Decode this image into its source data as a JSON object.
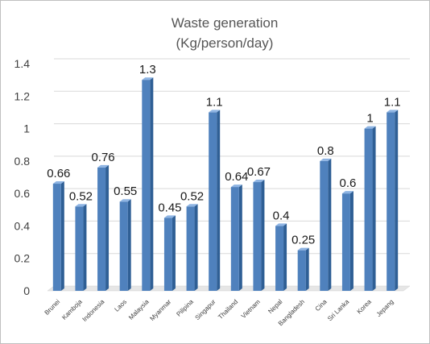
{
  "chart_data": {
    "type": "bar",
    "title_line1": "Waste generation",
    "title_line2": "(Kg/person/day)",
    "categories": [
      "Brunei",
      "Kamboja",
      "Indonesia",
      "Laos",
      "Malaysia",
      "Myanmar",
      "Pilipina",
      "Singapur",
      "Thailand",
      "Vietnam",
      "Nepal",
      "Bangladesh",
      "Cina",
      "Sri Lanka",
      "Korea",
      "Jepang"
    ],
    "values": [
      0.66,
      0.52,
      0.76,
      0.55,
      1.3,
      0.45,
      0.52,
      1.1,
      0.64,
      0.67,
      0.4,
      0.25,
      0.8,
      0.6,
      1,
      1.1
    ],
    "value_labels": [
      "0.66",
      "0.52",
      "0.76",
      "0.55",
      "1.3",
      "0.45",
      "0.52",
      "1.1",
      "0.64",
      "0.67",
      "0.4",
      "0.25",
      "0.8",
      "0.6",
      "1",
      "1.1"
    ],
    "y_ticks": [
      "0",
      "0.2",
      "0.4",
      "0.6",
      "0.8",
      "1",
      "1.2",
      "1.4"
    ],
    "ylim": [
      0,
      1.4
    ],
    "grid": true,
    "legend": "none",
    "colors": {
      "bar_front": "#4f81bd",
      "bar_side": "#2f5f95",
      "bar_top": "#8eb4e3"
    }
  }
}
